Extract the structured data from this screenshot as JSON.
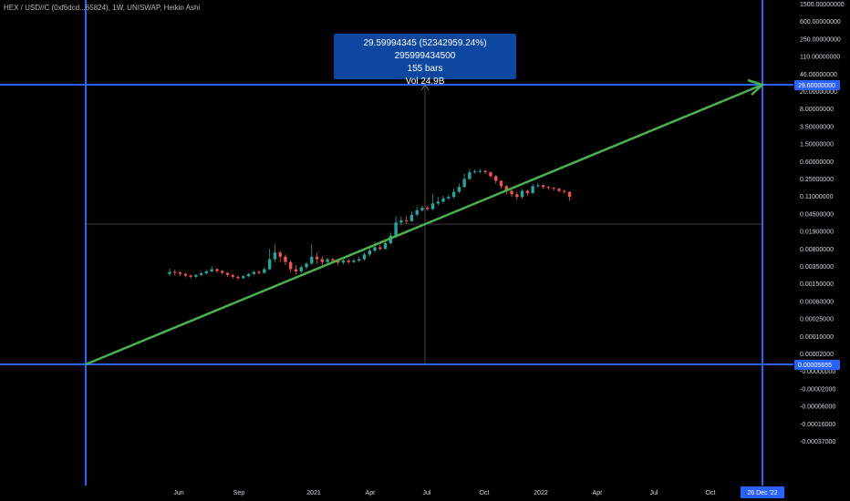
{
  "chart_data": {
    "type": "candlestick",
    "title": "HEX / USD//C (0xf6dcd...65824), 1W, UNISWAP, Heikin Ashi",
    "y_scale": "log",
    "y_ticks": [
      "1500.00000000",
      "600.00000000",
      "250.00000000",
      "110.00000000",
      "46.00000000",
      "20.00000000",
      "8.00000000",
      "3.50000000",
      "1.50000000",
      "0.60000000",
      "0.25000000",
      "0.11000000",
      "0.04500000",
      "0.01900000",
      "0.00800000",
      "0.00350000",
      "0.00150000",
      "0.00060000",
      "0.00025000",
      "0.00010000",
      "0.00002000",
      "-0.00000000",
      "-0.00002000",
      "-0.00006000",
      "-0.00016000",
      "-0.00037000"
    ],
    "x_ticks": [
      "Jun",
      "Sep",
      "2021",
      "Apr",
      "Jul",
      "Oct",
      "2022",
      "Apr",
      "Jul",
      "Oct"
    ],
    "price_labels": {
      "upper": "29.60000000",
      "lower": "0.00005655"
    },
    "date_label": "26 Dec '22",
    "measure": {
      "line1": "29.59994345 (52342959.24%) 295999434500",
      "line2": "155 bars",
      "line3": "Vol 24.9B"
    },
    "trendline": {
      "color": "#4caf50"
    },
    "colors": {
      "up": "#26a69a",
      "down": "#ef5350",
      "guide": "#2962ff",
      "axis_text": "#d1d4dc"
    },
    "candles": [
      {
        "o": 0.004,
        "c": 0.0044,
        "h": 0.0051,
        "l": 0.0036
      },
      {
        "o": 0.0044,
        "c": 0.0043,
        "h": 0.0049,
        "l": 0.0037
      },
      {
        "o": 0.0043,
        "c": 0.004,
        "h": 0.0045,
        "l": 0.0036
      },
      {
        "o": 0.004,
        "c": 0.0037,
        "h": 0.0042,
        "l": 0.0034
      },
      {
        "o": 0.0037,
        "c": 0.0035,
        "h": 0.0039,
        "l": 0.0032
      },
      {
        "o": 0.0035,
        "c": 0.0038,
        "h": 0.004,
        "l": 0.0033
      },
      {
        "o": 0.0038,
        "c": 0.0041,
        "h": 0.0044,
        "l": 0.0036
      },
      {
        "o": 0.0041,
        "c": 0.0045,
        "h": 0.0048,
        "l": 0.0039
      },
      {
        "o": 0.0045,
        "c": 0.005,
        "h": 0.0058,
        "l": 0.0043
      },
      {
        "o": 0.005,
        "c": 0.0046,
        "h": 0.0052,
        "l": 0.0042
      },
      {
        "o": 0.0046,
        "c": 0.0042,
        "h": 0.0048,
        "l": 0.0039
      },
      {
        "o": 0.0042,
        "c": 0.0038,
        "h": 0.0044,
        "l": 0.0035
      },
      {
        "o": 0.0038,
        "c": 0.0035,
        "h": 0.004,
        "l": 0.0032
      },
      {
        "o": 0.0035,
        "c": 0.0033,
        "h": 0.0037,
        "l": 0.003
      },
      {
        "o": 0.0033,
        "c": 0.0036,
        "h": 0.0038,
        "l": 0.0031
      },
      {
        "o": 0.0036,
        "c": 0.004,
        "h": 0.0042,
        "l": 0.0034
      },
      {
        "o": 0.004,
        "c": 0.0044,
        "h": 0.0046,
        "l": 0.0038
      },
      {
        "o": 0.0044,
        "c": 0.0042,
        "h": 0.0047,
        "l": 0.0039
      },
      {
        "o": 0.0042,
        "c": 0.005,
        "h": 0.0055,
        "l": 0.004
      },
      {
        "o": 0.005,
        "c": 0.008,
        "h": 0.013,
        "l": 0.0048
      },
      {
        "o": 0.008,
        "c": 0.011,
        "h": 0.016,
        "l": 0.007
      },
      {
        "o": 0.011,
        "c": 0.009,
        "h": 0.012,
        "l": 0.007
      },
      {
        "o": 0.009,
        "c": 0.007,
        "h": 0.01,
        "l": 0.006
      },
      {
        "o": 0.007,
        "c": 0.005,
        "h": 0.0075,
        "l": 0.0042
      },
      {
        "o": 0.005,
        "c": 0.0045,
        "h": 0.006,
        "l": 0.0038
      },
      {
        "o": 0.0045,
        "c": 0.0055,
        "h": 0.006,
        "l": 0.0042
      },
      {
        "o": 0.0055,
        "c": 0.0065,
        "h": 0.007,
        "l": 0.005
      },
      {
        "o": 0.0065,
        "c": 0.009,
        "h": 0.016,
        "l": 0.006
      },
      {
        "o": 0.009,
        "c": 0.008,
        "h": 0.011,
        "l": 0.0065
      },
      {
        "o": 0.008,
        "c": 0.007,
        "h": 0.009,
        "l": 0.006
      },
      {
        "o": 0.007,
        "c": 0.008,
        "h": 0.0085,
        "l": 0.0065
      },
      {
        "o": 0.008,
        "c": 0.0075,
        "h": 0.0085,
        "l": 0.0068
      },
      {
        "o": 0.0075,
        "c": 0.0068,
        "h": 0.008,
        "l": 0.006
      },
      {
        "o": 0.0068,
        "c": 0.0075,
        "h": 0.008,
        "l": 0.0062
      },
      {
        "o": 0.0075,
        "c": 0.007,
        "h": 0.008,
        "l": 0.0064
      },
      {
        "o": 0.007,
        "c": 0.0075,
        "h": 0.0082,
        "l": 0.0066
      },
      {
        "o": 0.0075,
        "c": 0.008,
        "h": 0.009,
        "l": 0.007
      },
      {
        "o": 0.008,
        "c": 0.01,
        "h": 0.011,
        "l": 0.0075
      },
      {
        "o": 0.01,
        "c": 0.012,
        "h": 0.014,
        "l": 0.009
      },
      {
        "o": 0.012,
        "c": 0.014,
        "h": 0.018,
        "l": 0.011
      },
      {
        "o": 0.014,
        "c": 0.013,
        "h": 0.016,
        "l": 0.012
      },
      {
        "o": 0.013,
        "c": 0.017,
        "h": 0.019,
        "l": 0.0125
      },
      {
        "o": 0.017,
        "c": 0.024,
        "h": 0.028,
        "l": 0.016
      },
      {
        "o": 0.024,
        "c": 0.045,
        "h": 0.06,
        "l": 0.022
      },
      {
        "o": 0.045,
        "c": 0.05,
        "h": 0.06,
        "l": 0.04
      },
      {
        "o": 0.05,
        "c": 0.048,
        "h": 0.06,
        "l": 0.042
      },
      {
        "o": 0.048,
        "c": 0.065,
        "h": 0.075,
        "l": 0.046
      },
      {
        "o": 0.065,
        "c": 0.08,
        "h": 0.095,
        "l": 0.06
      },
      {
        "o": 0.08,
        "c": 0.09,
        "h": 0.1,
        "l": 0.075
      },
      {
        "o": 0.09,
        "c": 0.085,
        "h": 0.1,
        "l": 0.078
      },
      {
        "o": 0.085,
        "c": 0.11,
        "h": 0.17,
        "l": 0.08
      },
      {
        "o": 0.11,
        "c": 0.12,
        "h": 0.15,
        "l": 0.1
      },
      {
        "o": 0.12,
        "c": 0.14,
        "h": 0.16,
        "l": 0.11
      },
      {
        "o": 0.14,
        "c": 0.15,
        "h": 0.17,
        "l": 0.13
      },
      {
        "o": 0.15,
        "c": 0.19,
        "h": 0.22,
        "l": 0.14
      },
      {
        "o": 0.19,
        "c": 0.24,
        "h": 0.28,
        "l": 0.18
      },
      {
        "o": 0.24,
        "c": 0.35,
        "h": 0.45,
        "l": 0.23
      },
      {
        "o": 0.35,
        "c": 0.48,
        "h": 0.55,
        "l": 0.33
      },
      {
        "o": 0.48,
        "c": 0.5,
        "h": 0.55,
        "l": 0.45
      },
      {
        "o": 0.5,
        "c": 0.51,
        "h": 0.56,
        "l": 0.47
      },
      {
        "o": 0.51,
        "c": 0.48,
        "h": 0.53,
        "l": 0.44
      },
      {
        "o": 0.48,
        "c": 0.4,
        "h": 0.5,
        "l": 0.36
      },
      {
        "o": 0.4,
        "c": 0.32,
        "h": 0.42,
        "l": 0.28
      },
      {
        "o": 0.32,
        "c": 0.25,
        "h": 0.33,
        "l": 0.22
      },
      {
        "o": 0.25,
        "c": 0.2,
        "h": 0.27,
        "l": 0.17
      },
      {
        "o": 0.2,
        "c": 0.17,
        "h": 0.22,
        "l": 0.15
      },
      {
        "o": 0.17,
        "c": 0.15,
        "h": 0.19,
        "l": 0.13
      },
      {
        "o": 0.15,
        "c": 0.2,
        "h": 0.22,
        "l": 0.14
      },
      {
        "o": 0.2,
        "c": 0.18,
        "h": 0.21,
        "l": 0.16
      },
      {
        "o": 0.18,
        "c": 0.25,
        "h": 0.28,
        "l": 0.17
      },
      {
        "o": 0.25,
        "c": 0.26,
        "h": 0.29,
        "l": 0.23
      },
      {
        "o": 0.26,
        "c": 0.24,
        "h": 0.27,
        "l": 0.22
      },
      {
        "o": 0.24,
        "c": 0.23,
        "h": 0.25,
        "l": 0.21
      },
      {
        "o": 0.23,
        "c": 0.22,
        "h": 0.24,
        "l": 0.2
      },
      {
        "o": 0.22,
        "c": 0.2,
        "h": 0.23,
        "l": 0.185
      },
      {
        "o": 0.2,
        "c": 0.19,
        "h": 0.21,
        "l": 0.175
      },
      {
        "o": 0.19,
        "c": 0.15,
        "h": 0.195,
        "l": 0.125
      }
    ]
  }
}
